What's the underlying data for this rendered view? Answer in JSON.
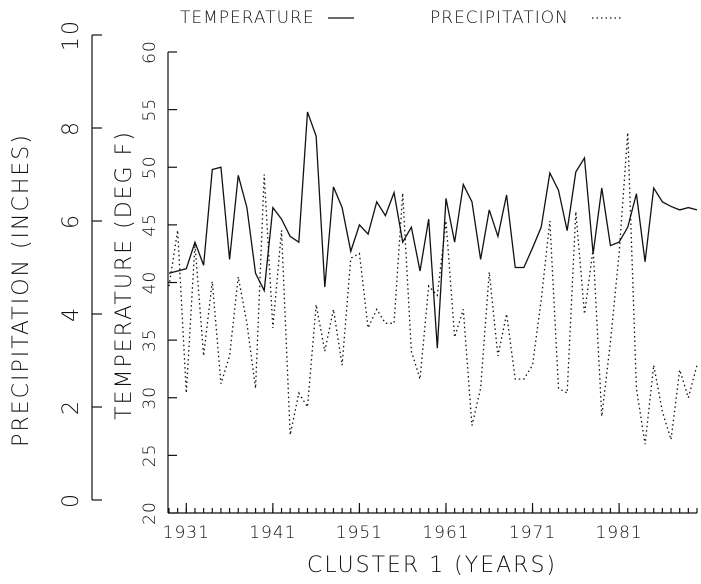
{
  "chart_data": {
    "type": "line",
    "legend_labels_note_free": null,
    "xlabel": "CLUSTER 1   (YEARS)",
    "ylabel": "TEMPERATURE (DEG F)",
    "y2label": "PRECIPITATION (INCHES)",
    "x": [
      1929,
      1930,
      1931,
      1932,
      1933,
      1934,
      1935,
      1936,
      1937,
      1938,
      1939,
      1940,
      1941,
      1942,
      1943,
      1944,
      1945,
      1946,
      1947,
      1948,
      1949,
      1950,
      1951,
      1952,
      1953,
      1954,
      1955,
      1956,
      1957,
      1958,
      1959,
      1960,
      1961,
      1962,
      1963,
      1964,
      1965,
      1966,
      1967,
      1968,
      1969,
      1970,
      1971,
      1972,
      1973,
      1974,
      1975,
      1976,
      1977,
      1978,
      1979,
      1980,
      1981,
      1982,
      1983,
      1984,
      1985,
      1986,
      1987,
      1988,
      1989,
      1990
    ],
    "series": [
      {
        "name": "TEMPERATURE",
        "color": "#111111",
        "style": "solid",
        "axis": "y",
        "values": [
          40.8,
          41,
          41.2,
          43.5,
          41.5,
          49.8,
          50,
          42,
          49.3,
          46.5,
          40.8,
          39.3,
          46.5,
          45.5,
          44,
          43.5,
          54.8,
          52.7,
          39.6,
          48.3,
          46.5,
          42.7,
          45,
          44.2,
          47,
          45.8,
          47.8,
          43.5,
          44.8,
          41,
          45.5,
          34.3,
          47.3,
          43.5,
          48.5,
          47,
          42,
          46.3,
          44,
          47.6,
          41.3,
          41.3,
          43,
          44.8,
          49.5,
          48,
          44.5,
          49.6,
          50.8,
          42.5,
          48.2,
          43.2,
          43.5,
          44.8,
          47.7,
          41.8,
          48.2,
          47,
          46.6,
          46.3,
          46.5,
          46.3
        ]
      },
      {
        "name": "PRECIPITATION",
        "color": "#111111",
        "style": "dotted",
        "axis": "y2",
        "values": [
          4.6,
          5.8,
          2.3,
          5.5,
          3.1,
          4.7,
          2.5,
          3.1,
          4.8,
          3.8,
          2.4,
          7.0,
          3.7,
          5.8,
          1.4,
          2.3,
          2.0,
          4.2,
          3.2,
          4.1,
          2.9,
          5.2,
          5.3,
          3.7,
          4.1,
          3.8,
          3.8,
          6.6,
          3.2,
          2.6,
          4.6,
          4.4,
          6.0,
          3.5,
          4.1,
          1.6,
          2.4,
          4.9,
          3.1,
          4.0,
          2.6,
          2.6,
          2.9,
          4.3,
          6.0,
          2.4,
          2.3,
          6.2,
          4.0,
          5.4,
          1.8,
          3.4,
          5.3,
          7.9,
          2.4,
          1.2,
          2.9,
          1.9,
          1.3,
          2.8,
          2.2,
          2.9
        ]
      }
    ],
    "xlim": [
      1929,
      1990
    ],
    "xticks": [
      1931,
      1941,
      1951,
      1961,
      1971,
      1981
    ],
    "ylim": [
      20,
      60
    ],
    "yticks": [
      20,
      25,
      30,
      35,
      40,
      45,
      50,
      55,
      60
    ],
    "y2lim": [
      0,
      10
    ],
    "y2ticks": [
      0,
      2,
      4,
      6,
      8,
      10
    ]
  }
}
